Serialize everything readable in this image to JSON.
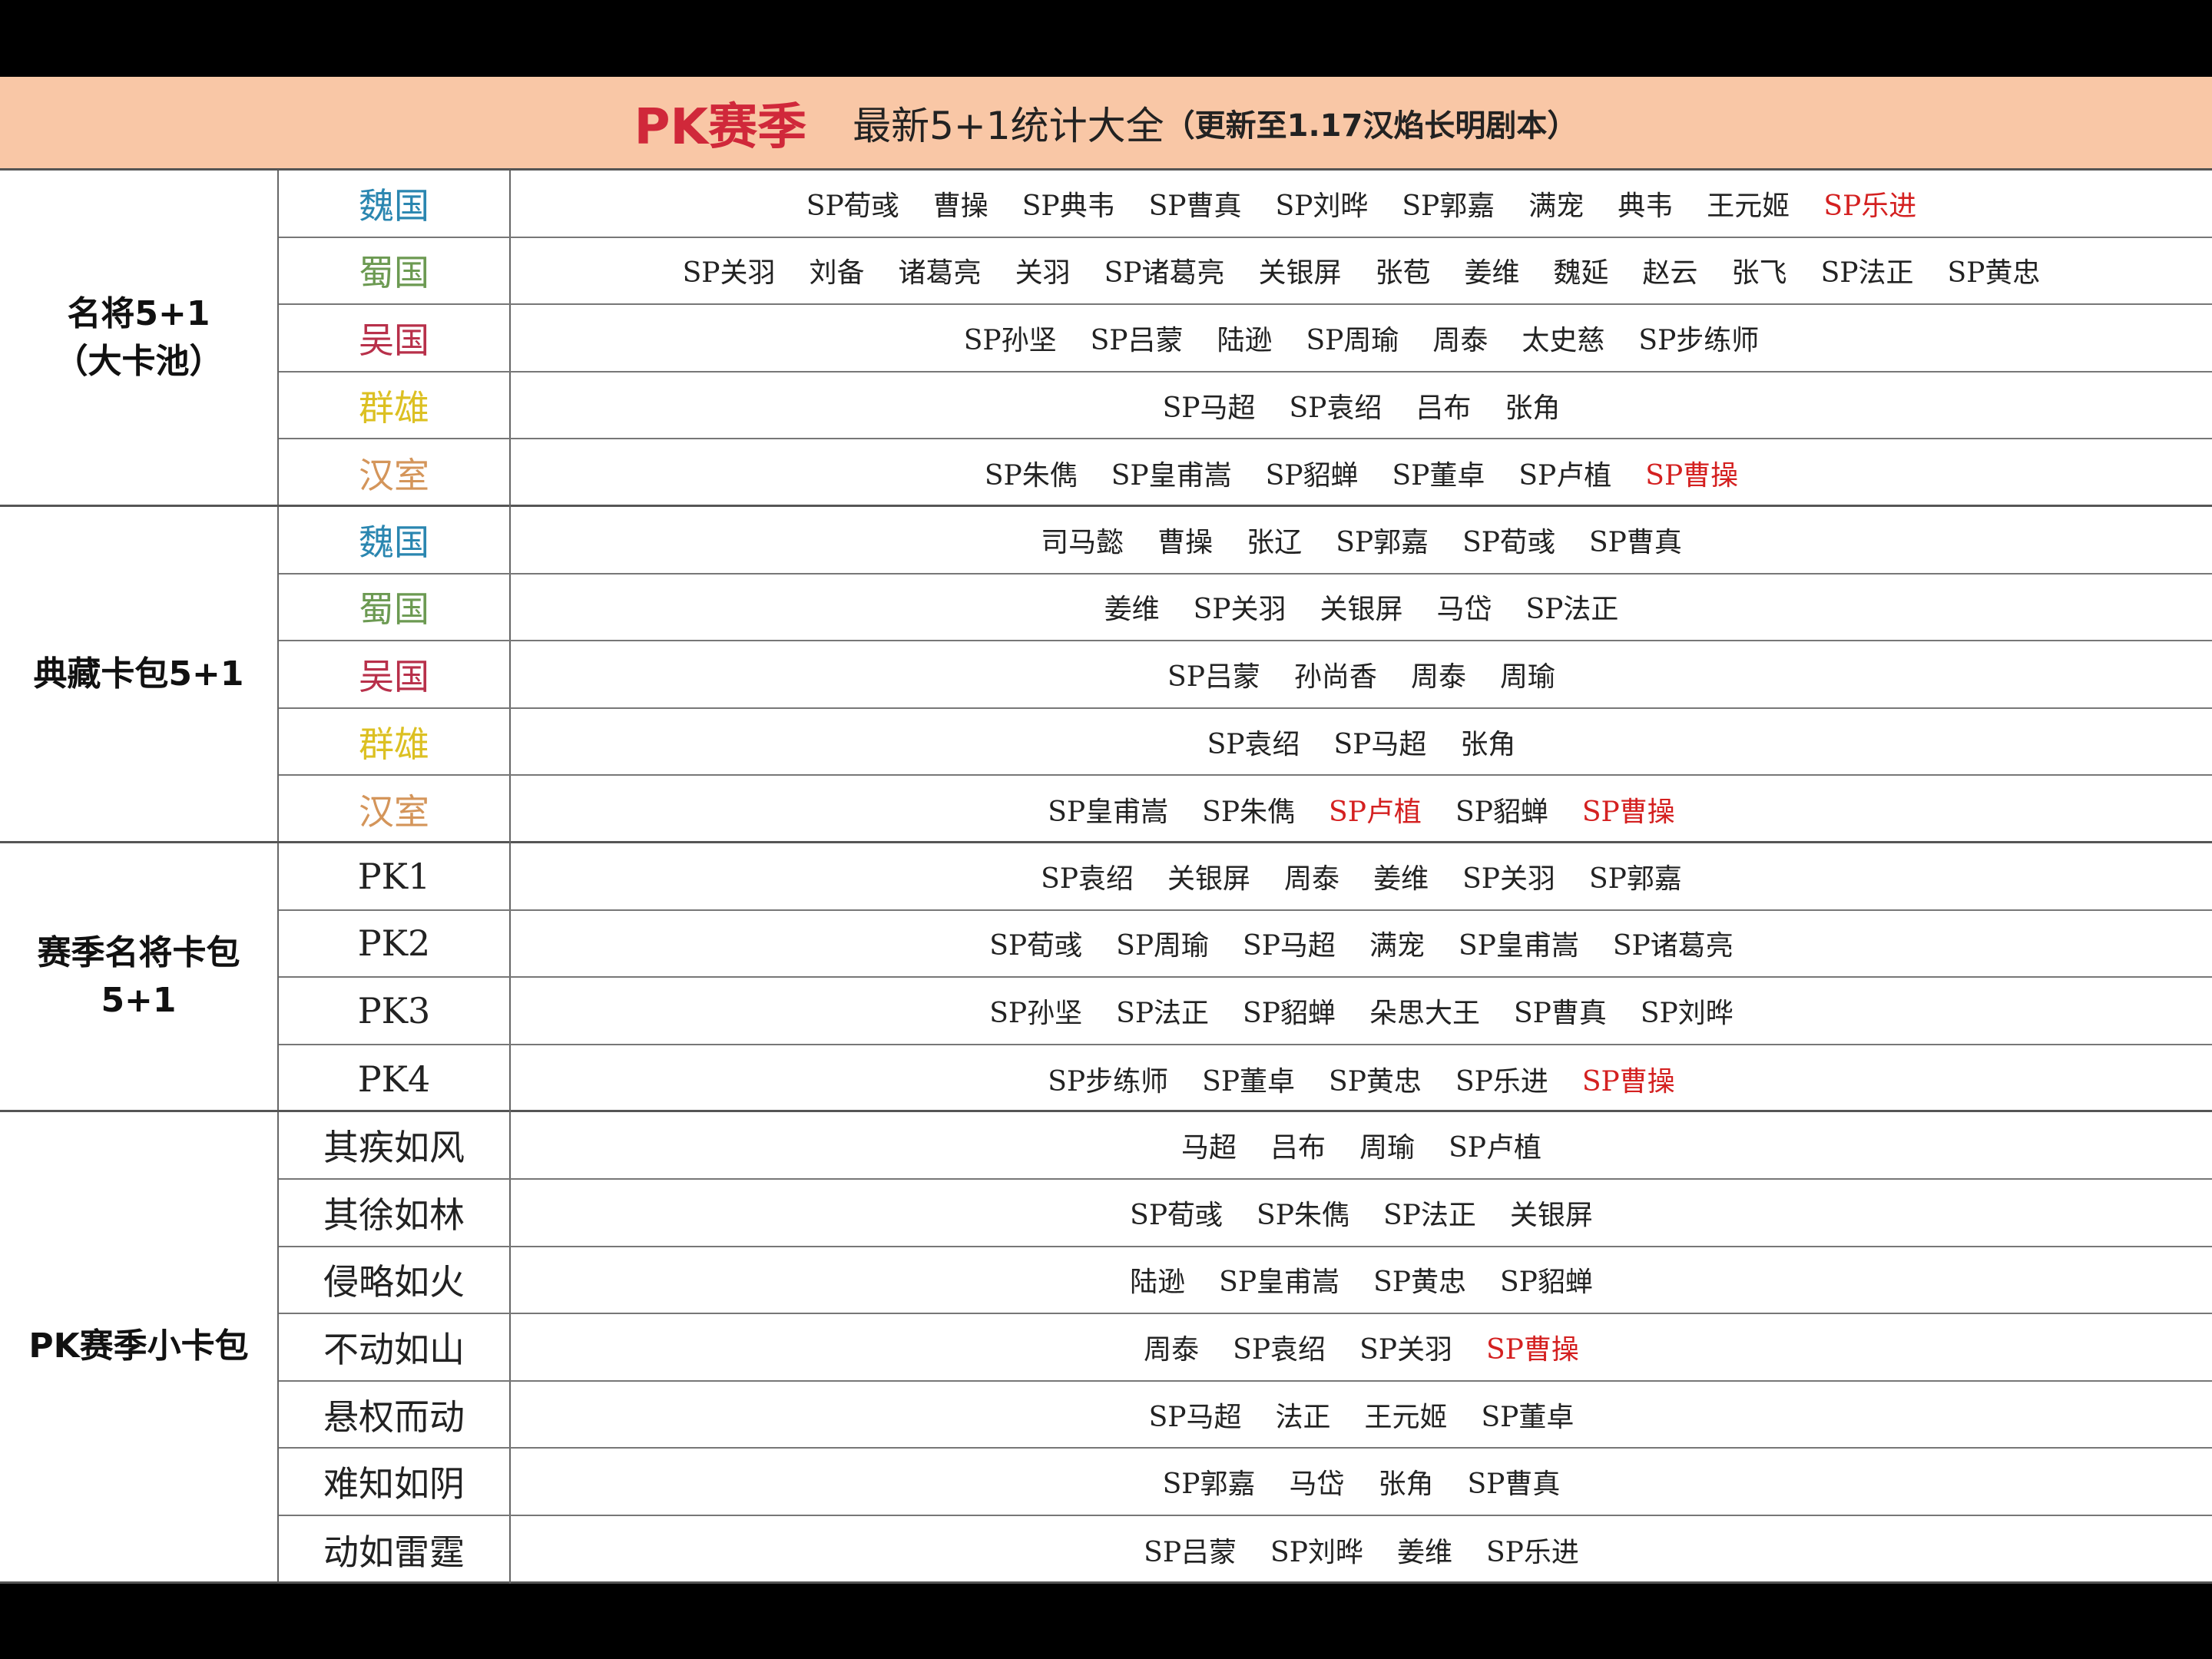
{
  "header": {
    "pk": "PK赛季",
    "subtitle": "最新5+1统计大全",
    "note": "（更新至1.17汉焰长明剧本）"
  },
  "colors": {
    "wei": "#2a86b0",
    "shu": "#6c9a52",
    "wu": "#b8304a",
    "qun": "#dcc022",
    "han": "#d4955a",
    "highlight": "#d42020",
    "header_bg": "#f9c7a6",
    "title_red": "#d0283a"
  },
  "groups": [
    {
      "label": "名将5+1\n（大卡池）",
      "rows": [
        {
          "label": "魏国",
          "color": "#2a86b0",
          "names": [
            {
              "text": "SP荀彧"
            },
            {
              "text": "曹操"
            },
            {
              "text": "SP典韦"
            },
            {
              "text": "SP曹真"
            },
            {
              "text": "SP刘晔"
            },
            {
              "text": "SP郭嘉"
            },
            {
              "text": "满宠"
            },
            {
              "text": "典韦"
            },
            {
              "text": "王元姬"
            },
            {
              "text": "SP乐进",
              "highlight": true
            }
          ]
        },
        {
          "label": "蜀国",
          "color": "#6c9a52",
          "names": [
            {
              "text": "SP关羽"
            },
            {
              "text": "刘备"
            },
            {
              "text": "诸葛亮"
            },
            {
              "text": "关羽"
            },
            {
              "text": "SP诸葛亮"
            },
            {
              "text": "关银屏"
            },
            {
              "text": "张苞"
            },
            {
              "text": "姜维"
            },
            {
              "text": "魏延"
            },
            {
              "text": "赵云"
            },
            {
              "text": "张飞"
            },
            {
              "text": "SP法正"
            },
            {
              "text": "SP黄忠"
            }
          ]
        },
        {
          "label": "吴国",
          "color": "#b8304a",
          "names": [
            {
              "text": "SP孙坚"
            },
            {
              "text": "SP吕蒙"
            },
            {
              "text": "陆逊"
            },
            {
              "text": "SP周瑜"
            },
            {
              "text": "周泰"
            },
            {
              "text": "太史慈"
            },
            {
              "text": "SP步练师"
            }
          ]
        },
        {
          "label": "群雄",
          "color": "#dcc022",
          "names": [
            {
              "text": "SP马超"
            },
            {
              "text": "SP袁绍"
            },
            {
              "text": "吕布"
            },
            {
              "text": "张角"
            }
          ]
        },
        {
          "label": "汉室",
          "color": "#d4955a",
          "names": [
            {
              "text": "SP朱儁"
            },
            {
              "text": "SP皇甫嵩"
            },
            {
              "text": "SP貂蝉"
            },
            {
              "text": "SP董卓"
            },
            {
              "text": "SP卢植"
            },
            {
              "text": "SP曹操",
              "highlight": true
            }
          ]
        }
      ]
    },
    {
      "label": "典藏卡包5+1",
      "rows": [
        {
          "label": "魏国",
          "color": "#2a86b0",
          "names": [
            {
              "text": "司马懿"
            },
            {
              "text": "曹操"
            },
            {
              "text": "张辽"
            },
            {
              "text": "SP郭嘉"
            },
            {
              "text": "SP荀彧"
            },
            {
              "text": "SP曹真"
            }
          ]
        },
        {
          "label": "蜀国",
          "color": "#6c9a52",
          "names": [
            {
              "text": "姜维"
            },
            {
              "text": "SP关羽"
            },
            {
              "text": "关银屏"
            },
            {
              "text": "马岱"
            },
            {
              "text": "SP法正"
            }
          ]
        },
        {
          "label": "吴国",
          "color": "#b8304a",
          "names": [
            {
              "text": "SP吕蒙"
            },
            {
              "text": "孙尚香"
            },
            {
              "text": "周泰"
            },
            {
              "text": "周瑜"
            }
          ]
        },
        {
          "label": "群雄",
          "color": "#dcc022",
          "names": [
            {
              "text": "SP袁绍"
            },
            {
              "text": "SP马超"
            },
            {
              "text": "张角"
            }
          ]
        },
        {
          "label": "汉室",
          "color": "#d4955a",
          "names": [
            {
              "text": "SP皇甫嵩"
            },
            {
              "text": "SP朱儁"
            },
            {
              "text": "SP卢植",
              "highlight": true
            },
            {
              "text": "SP貂蝉"
            },
            {
              "text": "SP曹操",
              "highlight": true
            }
          ]
        }
      ]
    },
    {
      "label": "赛季名将卡包\n5+1",
      "rows": [
        {
          "label": "PK1",
          "names": [
            {
              "text": "SP袁绍"
            },
            {
              "text": "关银屏"
            },
            {
              "text": "周泰"
            },
            {
              "text": "姜维"
            },
            {
              "text": "SP关羽"
            },
            {
              "text": "SP郭嘉"
            }
          ]
        },
        {
          "label": "PK2",
          "names": [
            {
              "text": "SP荀彧"
            },
            {
              "text": "SP周瑜"
            },
            {
              "text": "SP马超"
            },
            {
              "text": "满宠"
            },
            {
              "text": "SP皇甫嵩"
            },
            {
              "text": "SP诸葛亮"
            }
          ]
        },
        {
          "label": "PK3",
          "names": [
            {
              "text": "SP孙坚"
            },
            {
              "text": "SP法正"
            },
            {
              "text": "SP貂蝉"
            },
            {
              "text": "朵思大王"
            },
            {
              "text": "SP曹真"
            },
            {
              "text": "SP刘晔"
            }
          ]
        },
        {
          "label": "PK4",
          "names": [
            {
              "text": "SP步练师"
            },
            {
              "text": "SP董卓"
            },
            {
              "text": "SP黄忠"
            },
            {
              "text": "SP乐进"
            },
            {
              "text": "SP曹操",
              "highlight": true
            }
          ]
        }
      ]
    },
    {
      "label": "PK赛季小卡包",
      "rows": [
        {
          "label": "其疾如风",
          "names": [
            {
              "text": "马超"
            },
            {
              "text": "吕布"
            },
            {
              "text": "周瑜"
            },
            {
              "text": "SP卢植"
            }
          ]
        },
        {
          "label": "其徐如林",
          "names": [
            {
              "text": "SP荀彧"
            },
            {
              "text": "SP朱儁"
            },
            {
              "text": "SP法正"
            },
            {
              "text": "关银屏"
            }
          ]
        },
        {
          "label": "侵略如火",
          "names": [
            {
              "text": "陆逊"
            },
            {
              "text": "SP皇甫嵩"
            },
            {
              "text": "SP黄忠"
            },
            {
              "text": "SP貂蝉"
            }
          ]
        },
        {
          "label": "不动如山",
          "names": [
            {
              "text": "周泰"
            },
            {
              "text": "SP袁绍"
            },
            {
              "text": "SP关羽"
            },
            {
              "text": "SP曹操",
              "highlight": true
            }
          ]
        },
        {
          "label": "悬权而动",
          "names": [
            {
              "text": "SP马超"
            },
            {
              "text": "法正"
            },
            {
              "text": "王元姬"
            },
            {
              "text": "SP董卓"
            }
          ]
        },
        {
          "label": "难知如阴",
          "names": [
            {
              "text": "SP郭嘉"
            },
            {
              "text": "马岱"
            },
            {
              "text": "张角"
            },
            {
              "text": "SP曹真"
            }
          ]
        },
        {
          "label": "动如雷霆",
          "names": [
            {
              "text": "SP吕蒙"
            },
            {
              "text": "SP刘晔"
            },
            {
              "text": "姜维"
            },
            {
              "text": "SP乐进"
            }
          ]
        }
      ]
    }
  ]
}
